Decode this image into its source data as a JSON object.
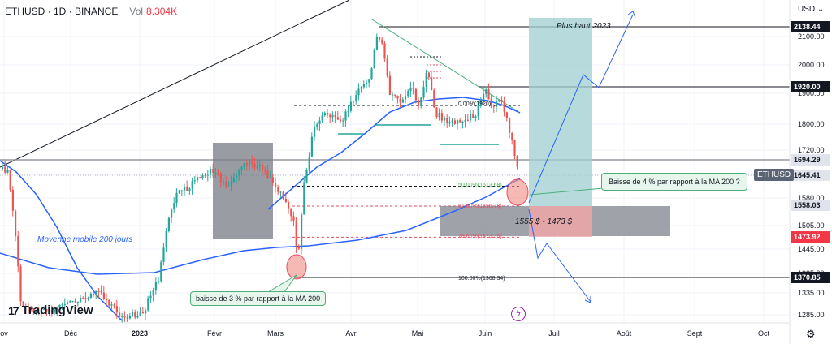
{
  "header": {
    "symbol": "ETHUSD · 1D · BINANCE",
    "vol_label": "Vol",
    "vol_value": "8.304K"
  },
  "currency": "USD ⌄",
  "branding": "TradingView",
  "chart_data": {
    "type": "candlestick",
    "title": "ETHUSD · 1D · BINANCE",
    "x_ticks": [
      "ov",
      "Déc",
      "2023",
      "Févr",
      "Mars",
      "Avr",
      "Mai",
      "Juin",
      "Juil",
      "Août",
      "Sept",
      "Oct"
    ],
    "y_ticks": [
      2100,
      2000,
      1900,
      1800,
      1720,
      1645,
      1580,
      1505,
      1445,
      1385,
      1335,
      1285
    ],
    "y_tick_labels": [
      "2100.00",
      "2000.00",
      "1900.00",
      "1800.00",
      "1720.00",
      "1645.00",
      "1580.00",
      "1505.00",
      "1445.00",
      "1385.00",
      "1335.00",
      "1285.00"
    ],
    "price_labels": [
      {
        "value": 2138.44,
        "label": "2138.44",
        "style": "dark"
      },
      {
        "value": 1920.0,
        "label": "1920.00",
        "style": "dark"
      },
      {
        "value": 1694.29,
        "label": "1694.29",
        "style": "light"
      },
      {
        "value": 1645.41,
        "label": "1645.41",
        "style": "light"
      },
      {
        "value": 1558.03,
        "label": "1558.03",
        "style": "light"
      },
      {
        "value": 1473.92,
        "label": "1473.92",
        "style": "red"
      },
      {
        "value": 1370.85,
        "label": "1370.85",
        "style": "dark"
      }
    ],
    "symbol_badge": "ETHUSD",
    "fibonacci": [
      {
        "level": "0.00%",
        "price": 1920.0,
        "label": "0.00%(1920)"
      },
      {
        "level": "50.00%",
        "price": 1613.68,
        "label": "50.00%(1613.68)"
      },
      {
        "level": "61.80%",
        "price": 1555.78,
        "label": "61.80%(1555.78)"
      },
      {
        "level": "78.60%",
        "price": 1473.35,
        "label": "78.60%(1473.35)"
      },
      {
        "level": "100.00%",
        "price": 1368.34,
        "label": "100.00%(1368.34)"
      }
    ],
    "annotations": {
      "high_2023": "Plus haut 2023",
      "ma200": "Moyenne mobile 200 jours",
      "note_left": "baisse de 3 % par rapport à la MA 200",
      "note_right": "Baisse de 4 % par rapport à la MA 200 ?",
      "zone": "1555 $ - 1473 $"
    },
    "colors": {
      "up": "#26a69a",
      "down": "#ef5350",
      "ma_fast": "#2962ff",
      "ma200": "#2962ff"
    }
  }
}
